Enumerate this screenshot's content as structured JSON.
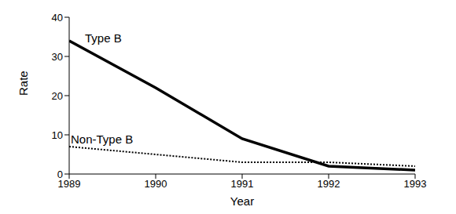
{
  "chart_data": {
    "type": "line",
    "x_label": "Year",
    "y_label": "Rate",
    "x": [
      1989,
      1990,
      1991,
      1992,
      1993
    ],
    "xlim": [
      1989,
      1993
    ],
    "xticks": [
      1989,
      1990,
      1991,
      1992,
      1993
    ],
    "ylim": [
      0,
      40
    ],
    "yticks": [
      0,
      10,
      20,
      30,
      40
    ],
    "grid": false,
    "series": [
      {
        "name": "Type B",
        "color": "#000000",
        "line_style": "solid",
        "values": [
          34,
          22,
          9,
          2,
          1
        ]
      },
      {
        "name": "Non-Type B",
        "color": "#000000",
        "line_style": "dotted",
        "values": [
          7,
          5,
          3,
          3,
          2
        ]
      }
    ]
  }
}
